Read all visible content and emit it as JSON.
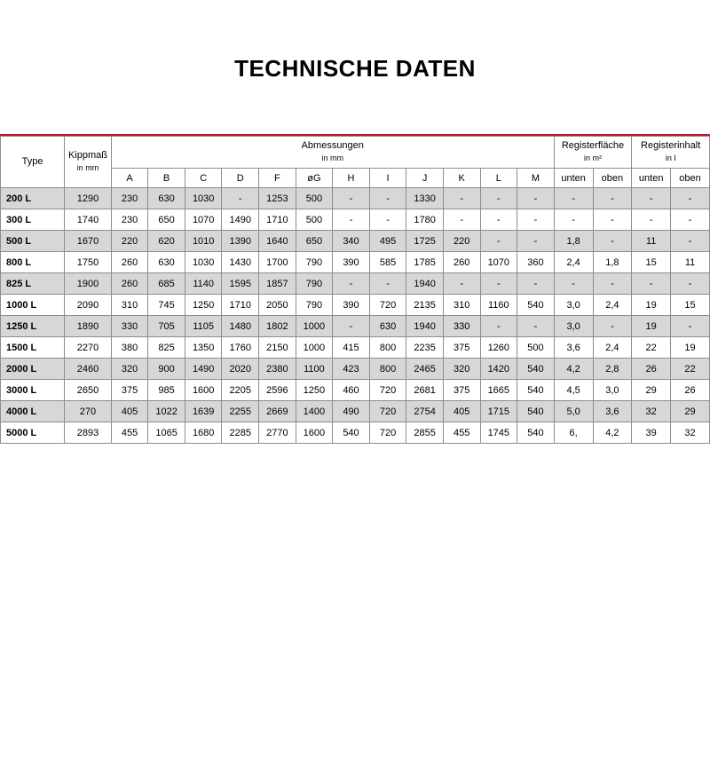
{
  "table": {
    "title": "TECHNISCHE DATEN",
    "accent_color": "#c8102e",
    "row_alt_color": "#d7d7d7",
    "border_color": "#8d8d8d",
    "text_color": "#000000",
    "background_color": "#ffffff",
    "font_family": "Arial, Helvetica, sans-serif",
    "title_fontsize": 26,
    "cell_fontsize": 11,
    "headers": {
      "type": "Type",
      "kippmass": "Kippmaß",
      "kippmass_unit": "in mm",
      "abmessungen": "Abmessungen",
      "abmessungen_unit": "in mm",
      "registerflaeche": "Registerfläche",
      "registerflaeche_unit": "in m²",
      "registerinhalt": "Registerinhalt",
      "registerinhalt_unit": "in l",
      "dims": [
        "A",
        "B",
        "C",
        "D",
        "F",
        "øG",
        "H",
        "I",
        "J",
        "K",
        "L",
        "M"
      ],
      "unten": "unten",
      "oben": "oben"
    },
    "columns": [
      "Type",
      "Kippmaß",
      "A",
      "B",
      "C",
      "D",
      "F",
      "øG",
      "H",
      "I",
      "J",
      "K",
      "L",
      "M",
      "Rf_unten",
      "Rf_oben",
      "Ri_unten",
      "Ri_oben"
    ],
    "rows": [
      [
        "200 L",
        "1290",
        "230",
        "630",
        "1030",
        "-",
        "1253",
        "500",
        "-",
        "-",
        "1330",
        "-",
        "-",
        "-",
        "-",
        "-",
        "-",
        "-"
      ],
      [
        "300 L",
        "1740",
        "230",
        "650",
        "1070",
        "1490",
        "1710",
        "500",
        "-",
        "-",
        "1780",
        "-",
        "-",
        "-",
        "-",
        "-",
        "-",
        "-"
      ],
      [
        "500 L",
        "1670",
        "220",
        "620",
        "1010",
        "1390",
        "1640",
        "650",
        "340",
        "495",
        "1725",
        "220",
        "-",
        "-",
        "1,8",
        "-",
        "11",
        "-"
      ],
      [
        "800 L",
        "1750",
        "260",
        "630",
        "1030",
        "1430",
        "1700",
        "790",
        "390",
        "585",
        "1785",
        "260",
        "1070",
        "360",
        "2,4",
        "1,8",
        "15",
        "11"
      ],
      [
        "825 L",
        "1900",
        "260",
        "685",
        "1140",
        "1595",
        "1857",
        "790",
        "-",
        "-",
        "1940",
        "-",
        "-",
        "-",
        "-",
        "-",
        "-",
        "-"
      ],
      [
        "1000 L",
        "2090",
        "310",
        "745",
        "1250",
        "1710",
        "2050",
        "790",
        "390",
        "720",
        "2135",
        "310",
        "1160",
        "540",
        "3,0",
        "2,4",
        "19",
        "15"
      ],
      [
        "1250 L",
        "1890",
        "330",
        "705",
        "1105",
        "1480",
        "1802",
        "1000",
        "-",
        "630",
        "1940",
        "330",
        "-",
        "-",
        "3,0",
        "-",
        "19",
        "-"
      ],
      [
        "1500 L",
        "2270",
        "380",
        "825",
        "1350",
        "1760",
        "2150",
        "1000",
        "415",
        "800",
        "2235",
        "375",
        "1260",
        "500",
        "3,6",
        "2,4",
        "22",
        "19"
      ],
      [
        "2000 L",
        "2460",
        "320",
        "900",
        "1490",
        "2020",
        "2380",
        "1100",
        "423",
        "800",
        "2465",
        "320",
        "1420",
        "540",
        "4,2",
        "2,8",
        "26",
        "22"
      ],
      [
        "3000 L",
        "2650",
        "375",
        "985",
        "1600",
        "2205",
        "2596",
        "1250",
        "460",
        "720",
        "2681",
        "375",
        "1665",
        "540",
        "4,5",
        "3,0",
        "29",
        "26"
      ],
      [
        "4000 L",
        "270",
        "405",
        "1022",
        "1639",
        "2255",
        "2669",
        "1400",
        "490",
        "720",
        "2754",
        "405",
        "1715",
        "540",
        "5,0",
        "3,6",
        "32",
        "29"
      ],
      [
        "5000 L",
        "2893",
        "455",
        "1065",
        "1680",
        "2285",
        "2770",
        "1600",
        "540",
        "720",
        "2855",
        "455",
        "1745",
        "540",
        "6,",
        "4,2",
        "39",
        "32"
      ]
    ]
  }
}
